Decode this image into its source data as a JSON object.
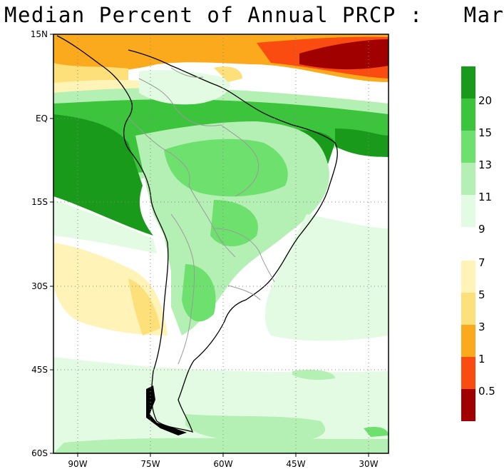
{
  "title": "Median Percent of Annual PRCP :   Mar",
  "map": {
    "lat_labels": [
      "15N",
      "EQ",
      "15S",
      "30S",
      "45S",
      "60S"
    ],
    "lon_labels": [
      "90W",
      "75W",
      "60W",
      "45W",
      "30W"
    ],
    "extent": {
      "lon_min": -95,
      "lon_max": -26,
      "lat_min": -60,
      "lat_max": 15
    }
  },
  "colorbar": {
    "upper": [
      {
        "label": "20",
        "color": "#1a9a1a"
      },
      {
        "label": "15",
        "color": "#3cc43c"
      },
      {
        "label": "13",
        "color": "#6ee06e"
      },
      {
        "label": "11",
        "color": "#b4f0b4"
      },
      {
        "label": "9",
        "color": "#e2fbe2"
      }
    ],
    "lower": [
      {
        "label": "7",
        "color": "#fff3b8"
      },
      {
        "label": "5",
        "color": "#fde07a"
      },
      {
        "label": "3",
        "color": "#fbaa1e"
      },
      {
        "label": "1",
        "color": "#fa4c10"
      },
      {
        "label": "0.5",
        "color": "#a00000"
      }
    ]
  }
}
